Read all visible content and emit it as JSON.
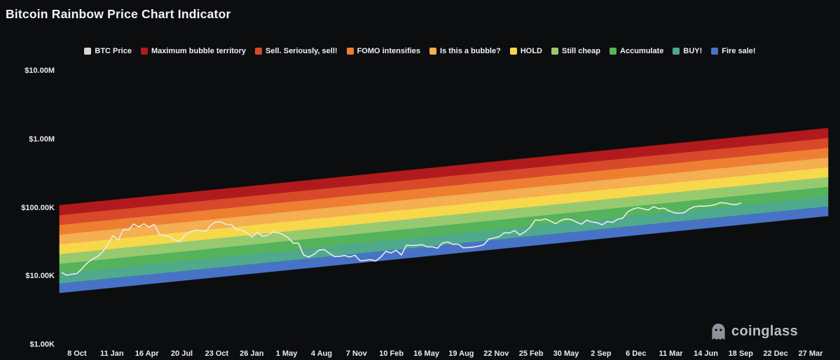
{
  "page": {
    "title": "Bitcoin Rainbow Price Chart Indicator",
    "background": "#0c0d0f"
  },
  "watermark": {
    "text": "coinglass",
    "icon": "coinglass-ghost-icon"
  },
  "legend": {
    "items": [
      {
        "label": "BTC Price",
        "color": "#d8d8d8"
      },
      {
        "label": "Maximum bubble territory",
        "color": "#b11a1d"
      },
      {
        "label": "Sell. Seriously, sell!",
        "color": "#d8492a"
      },
      {
        "label": "FOMO intensifies",
        "color": "#ee7f32"
      },
      {
        "label": "Is this a bubble?",
        "color": "#f5ae50"
      },
      {
        "label": "HOLD",
        "color": "#f7d84b"
      },
      {
        "label": "Still cheap",
        "color": "#97ca6e"
      },
      {
        "label": "Accumulate",
        "color": "#55b45b"
      },
      {
        "label": "BUY!",
        "color": "#4fa98c"
      },
      {
        "label": "Fire sale!",
        "color": "#4873c4"
      }
    ]
  },
  "chart_data": {
    "type": "area",
    "title": "Bitcoin Rainbow Price Chart Indicator",
    "y_scale": "log",
    "ylim": [
      1000,
      10000000
    ],
    "grid": false,
    "legend_position": "top",
    "y_ticks": [
      {
        "label": "$10.00M",
        "value": 10000000
      },
      {
        "label": "$1.00M",
        "value": 1000000
      },
      {
        "label": "$100.00K",
        "value": 100000
      },
      {
        "label": "$10.00K",
        "value": 10000
      },
      {
        "label": "$1.00K",
        "value": 1000
      }
    ],
    "x_ticks": [
      "8 Oct",
      "11 Jan",
      "16 Apr",
      "20 Jul",
      "23 Oct",
      "26 Jan",
      "1 May",
      "4 Aug",
      "7 Nov",
      "10 Feb",
      "16 May",
      "19 Aug",
      "22 Nov",
      "25 Feb",
      "30 May",
      "2 Sep",
      "6 Dec",
      "11 Mar",
      "14 Jun",
      "18 Sep",
      "22 Dec",
      "27 Mar"
    ],
    "x_start_date": "2020-10-08",
    "x_tick_interval_days": 95,
    "bands": {
      "labels_top_to_bottom": [
        "Maximum bubble territory",
        "Sell. Seriously, sell!",
        "FOMO intensifies",
        "Is this a bubble?",
        "HOLD",
        "Still cheap",
        "Accumulate",
        "BUY!",
        "Fire sale!"
      ],
      "colors_bottom_to_top": [
        "#4873c4",
        "#4fa98c",
        "#55b45b",
        "#97ca6e",
        "#f7d84b",
        "#f5ae50",
        "#ee7f32",
        "#d8492a",
        "#b11a1d"
      ],
      "boundary_prices_left": [
        5700,
        7900,
        11000,
        15200,
        21100,
        29200,
        40500,
        56200,
        77900,
        108000
      ],
      "boundary_prices_right": [
        76000,
        105000,
        146000,
        203000,
        282000,
        391000,
        543000,
        753000,
        1045000,
        1450000
      ]
    },
    "series": [
      {
        "name": "BTC Price",
        "color": "#ececec",
        "dates": [
          "2020-08-27",
          "2020-09-10",
          "2020-09-24",
          "2020-10-08",
          "2020-10-22",
          "2020-11-05",
          "2020-11-19",
          "2020-12-03",
          "2020-12-17",
          "2020-12-31",
          "2021-01-14",
          "2021-01-28",
          "2021-02-11",
          "2021-02-25",
          "2021-03-11",
          "2021-03-25",
          "2021-04-08",
          "2021-04-22",
          "2021-05-06",
          "2021-05-20",
          "2021-06-03",
          "2021-06-17",
          "2021-07-01",
          "2021-07-15",
          "2021-07-29",
          "2021-08-12",
          "2021-08-26",
          "2021-09-09",
          "2021-09-23",
          "2021-10-07",
          "2021-10-21",
          "2021-11-04",
          "2021-11-18",
          "2021-12-02",
          "2021-12-16",
          "2021-12-30",
          "2022-01-13",
          "2022-01-27",
          "2022-02-10",
          "2022-02-24",
          "2022-03-10",
          "2022-03-24",
          "2022-04-07",
          "2022-04-21",
          "2022-05-05",
          "2022-05-19",
          "2022-06-02",
          "2022-06-16",
          "2022-06-30",
          "2022-07-14",
          "2022-07-28",
          "2022-08-11",
          "2022-08-25",
          "2022-09-08",
          "2022-09-22",
          "2022-10-06",
          "2022-10-20",
          "2022-11-03",
          "2022-11-17",
          "2022-12-01",
          "2022-12-15",
          "2022-12-29",
          "2023-01-12",
          "2023-01-26",
          "2023-02-09",
          "2023-02-23",
          "2023-03-09",
          "2023-03-23",
          "2023-04-06",
          "2023-04-20",
          "2023-05-04",
          "2023-05-18",
          "2023-06-01",
          "2023-06-15",
          "2023-06-29",
          "2023-07-13",
          "2023-07-27",
          "2023-08-10",
          "2023-08-24",
          "2023-09-07",
          "2023-09-21",
          "2023-10-05",
          "2023-10-19",
          "2023-11-02",
          "2023-11-16",
          "2023-11-30",
          "2023-12-14",
          "2023-12-28",
          "2024-01-11",
          "2024-01-25",
          "2024-02-08",
          "2024-02-22",
          "2024-03-07",
          "2024-03-21",
          "2024-04-04",
          "2024-04-18",
          "2024-05-02",
          "2024-05-16",
          "2024-05-30",
          "2024-06-13",
          "2024-06-27",
          "2024-07-11",
          "2024-07-25",
          "2024-08-08",
          "2024-08-22",
          "2024-09-05",
          "2024-09-19",
          "2024-10-03",
          "2024-10-17",
          "2024-10-31",
          "2024-11-14",
          "2024-11-28",
          "2024-12-12",
          "2024-12-26",
          "2025-01-09",
          "2025-01-23",
          "2025-02-06",
          "2025-02-20",
          "2025-03-06",
          "2025-03-20",
          "2025-04-03",
          "2025-04-17",
          "2025-05-01",
          "2025-05-15",
          "2025-05-29",
          "2025-06-12",
          "2025-06-26",
          "2025-07-10",
          "2025-07-24",
          "2025-08-07",
          "2025-08-21",
          "2025-09-04",
          "2025-09-18"
        ],
        "values": [
          11300,
          10300,
          10700,
          10900,
          12900,
          15600,
          17800,
          19400,
          22800,
          29000,
          39200,
          33400,
          47900,
          47100,
          57800,
          52300,
          58100,
          51700,
          57400,
          40800,
          39200,
          38100,
          33600,
          31900,
          40000,
          44400,
          46900,
          46400,
          44900,
          55300,
          62200,
          61400,
          56900,
          56500,
          47700,
          47100,
          42600,
          37200,
          43500,
          38300,
          39400,
          44000,
          43200,
          40500,
          36500,
          30300,
          30400,
          20400,
          19000,
          20800,
          24000,
          24400,
          21600,
          19300,
          19400,
          20000,
          19000,
          20200,
          16700,
          17000,
          17400,
          16600,
          19000,
          23000,
          21800,
          23900,
          20400,
          28300,
          28000,
          28200,
          28900,
          26800,
          26800,
          25600,
          30400,
          31500,
          29200,
          29400,
          26000,
          26200,
          26600,
          27400,
          28700,
          34900,
          36100,
          37700,
          43000,
          42600,
          46300,
          40000,
          44300,
          51300,
          66100,
          65500,
          68500,
          63500,
          58300,
          65200,
          68300,
          66800,
          61700,
          57300,
          65800,
          61700,
          60400,
          56200,
          62900,
          60800,
          67400,
          70200,
          87300,
          95600,
          100000,
          95800,
          92500,
          103900,
          96600,
          98300,
          89900,
          84200,
          83100,
          84900,
          96500,
          103700,
          105600,
          105400,
          107000,
          111300,
          118600,
          116900,
          112400,
          110700,
          117000
        ]
      }
    ]
  }
}
